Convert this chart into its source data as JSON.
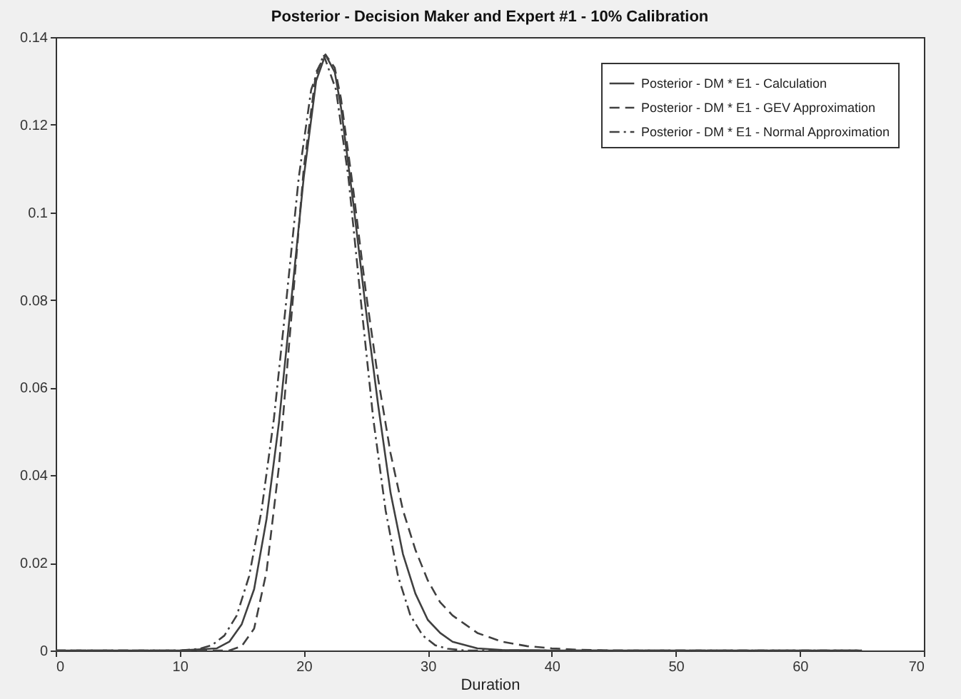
{
  "chart_data": {
    "type": "line",
    "title": "Posterior - Decision Maker and Expert #1 - 10% Calibration",
    "xlabel": "Duration",
    "xlim": [
      0,
      70
    ],
    "xticks": [
      0,
      10,
      20,
      30,
      40,
      50,
      60,
      70
    ],
    "ylim": [
      0,
      0.14
    ],
    "yticks": [
      0,
      0.02,
      0.04,
      0.06,
      0.08,
      0.1,
      0.12,
      0.14
    ],
    "grid": false,
    "legend": "top right",
    "series": [
      {
        "name": "Posterior - DM * E1 - Calculation",
        "color": "#404040",
        "line_style": "solid",
        "x": [
          0,
          10,
          13,
          14,
          15,
          16,
          17,
          18,
          19,
          20,
          21,
          21.75,
          22.5,
          23,
          24,
          25,
          26,
          27,
          28,
          29,
          30,
          31,
          32,
          34,
          36,
          40,
          65
        ],
        "values": [
          0,
          0,
          0.0005,
          0.002,
          0.006,
          0.014,
          0.03,
          0.052,
          0.08,
          0.108,
          0.13,
          0.136,
          0.132,
          0.124,
          0.102,
          0.078,
          0.056,
          0.036,
          0.022,
          0.013,
          0.007,
          0.004,
          0.002,
          0.0005,
          0.0001,
          0,
          0
        ]
      },
      {
        "name": "Posterior - DM * E1 - GEV Approximation",
        "color": "#404040",
        "line_style": "dashed",
        "x": [
          0,
          14,
          15,
          16,
          17,
          18,
          19,
          20,
          21,
          21.75,
          22.5,
          23,
          24,
          25,
          26,
          27,
          28,
          29,
          30,
          31,
          32,
          33,
          34,
          36,
          38,
          40,
          42,
          45,
          65
        ],
        "values": [
          0,
          0,
          0.001,
          0.005,
          0.018,
          0.042,
          0.076,
          0.11,
          0.132,
          0.136,
          0.133,
          0.126,
          0.105,
          0.082,
          0.062,
          0.045,
          0.032,
          0.023,
          0.016,
          0.011,
          0.008,
          0.006,
          0.004,
          0.002,
          0.001,
          0.0005,
          0.0002,
          0,
          0
        ]
      },
      {
        "name": "Posterior - DM * E1 - Normal Approximation",
        "color": "#404040",
        "line_style": "dotted",
        "x": [
          0,
          10,
          11.6,
          12.6,
          13.6,
          14.6,
          15.6,
          16.6,
          17.6,
          18.6,
          19.6,
          20.6,
          21.6,
          22.6,
          23.6,
          24.6,
          25.6,
          26.6,
          27.6,
          28.6,
          29.6,
          30.6,
          31.6,
          33,
          65
        ],
        "values": [
          0,
          0,
          0.0004,
          0.0012,
          0.0034,
          0.008,
          0.017,
          0.032,
          0.053,
          0.08,
          0.108,
          0.128,
          0.136,
          0.128,
          0.108,
          0.08,
          0.053,
          0.032,
          0.017,
          0.008,
          0.0034,
          0.0012,
          0.0004,
          0,
          0
        ]
      }
    ]
  }
}
